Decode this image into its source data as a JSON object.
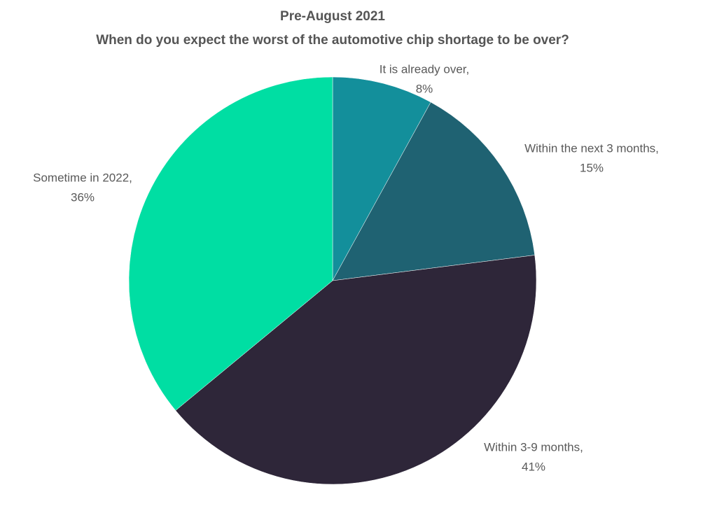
{
  "chart_data": {
    "type": "pie",
    "title": "Pre-August 2021",
    "subtitle": "When do you expect the worst of the automotive chip shortage to be over?",
    "categories": [
      "It is already over,",
      "Within the next 3 months,",
      "Within 3-9 months,",
      "Sometime in 2022,"
    ],
    "values": [
      8,
      15,
      41,
      36
    ],
    "value_labels": [
      "8%",
      "15%",
      "41%",
      "36%"
    ],
    "colors": [
      "#138f9b",
      "#1f6272",
      "#2e2639",
      "#00dea3"
    ]
  }
}
